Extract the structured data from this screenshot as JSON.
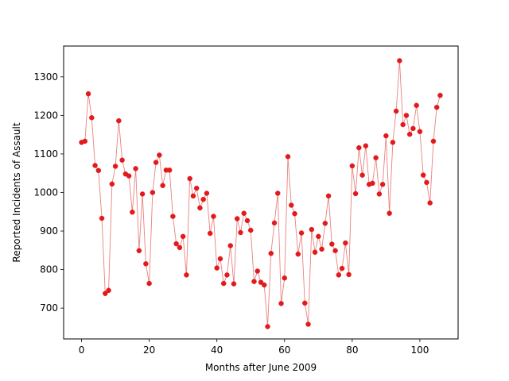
{
  "chart_data": {
    "type": "line",
    "title": "",
    "xlabel": "Months after June 2009",
    "ylabel": "Reported Incidents of Assault",
    "xlim": [
      -5.3,
      111.3
    ],
    "ylim": [
      620,
      1380
    ],
    "xticks": [
      0,
      20,
      40,
      60,
      80,
      100
    ],
    "yticks": [
      700,
      800,
      900,
      1000,
      1100,
      1200,
      1300
    ],
    "grid": false,
    "series": [
      {
        "line_color": "#e8837f",
        "marker_color": "#e31a1c",
        "x": [
          0,
          1,
          2,
          3,
          4,
          5,
          6,
          7,
          8,
          9,
          10,
          11,
          12,
          13,
          14,
          15,
          16,
          17,
          18,
          19,
          20,
          21,
          22,
          23,
          24,
          25,
          26,
          27,
          28,
          29,
          30,
          31,
          32,
          33,
          34,
          35,
          36,
          37,
          38,
          39,
          40,
          41,
          42,
          43,
          44,
          45,
          46,
          47,
          48,
          49,
          50,
          51,
          52,
          53,
          54,
          55,
          56,
          57,
          58,
          59,
          60,
          61,
          62,
          63,
          64,
          65,
          66,
          67,
          68,
          69,
          70,
          71,
          72,
          73,
          74,
          75,
          76,
          77,
          78,
          79,
          80,
          81,
          82,
          83,
          84,
          85,
          86,
          87,
          88,
          89,
          90,
          91,
          92,
          93,
          94,
          95,
          96,
          97,
          98,
          99,
          100,
          101,
          102,
          103,
          104,
          105,
          106
        ],
        "values": [
          1130,
          1133,
          1256,
          1194,
          1070,
          1057,
          933,
          738,
          746,
          1022,
          1068,
          1186,
          1084,
          1048,
          1043,
          949,
          1062,
          849,
          996,
          815,
          764,
          1000,
          1078,
          1097,
          1018,
          1058,
          1058,
          938,
          867,
          857,
          886,
          786,
          1036,
          991,
          1011,
          960,
          982,
          998,
          894,
          938,
          804,
          828,
          764,
          786,
          862,
          763,
          932,
          896,
          946,
          927,
          902,
          769,
          796,
          767,
          760,
          652,
          842,
          921,
          998,
          712,
          778,
          1093,
          967,
          945,
          840,
          895,
          713,
          658,
          904,
          845,
          886,
          853,
          920,
          991,
          866,
          849,
          786,
          803,
          869,
          787,
          1069,
          997,
          1116,
          1045,
          1121,
          1021,
          1024,
          1090,
          996,
          1021,
          1147,
          946,
          1130,
          1211,
          1342,
          1176,
          1200,
          1151,
          1166,
          1226,
          1158,
          1045,
          1026,
          973,
          1133,
          1221,
          1252
        ]
      }
    ]
  }
}
